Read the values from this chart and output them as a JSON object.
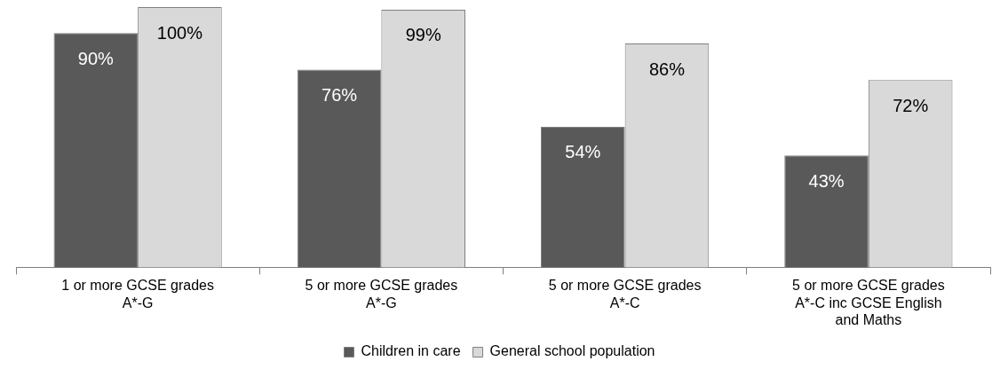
{
  "chart_data": {
    "type": "bar",
    "categories": [
      "1 or more GCSE grades A*-G",
      "5 or more GCSE grades A*-G",
      "5 or more GCSE grades A*-C",
      "5 or more GCSE grades A*-C inc GCSE English and Maths"
    ],
    "series": [
      {
        "name": "Children in care",
        "color": "#595959",
        "values": [
          90,
          76,
          54,
          43
        ],
        "value_labels": [
          "90%",
          "76%",
          "54%",
          "43%"
        ]
      },
      {
        "name": "General school population",
        "color": "#d9d9d9",
        "values": [
          100,
          99,
          86,
          72
        ],
        "value_labels": [
          "100%",
          "99%",
          "86%",
          "72%"
        ]
      }
    ],
    "relative": false,
    "legend": "bottom",
    "grid": false
  }
}
